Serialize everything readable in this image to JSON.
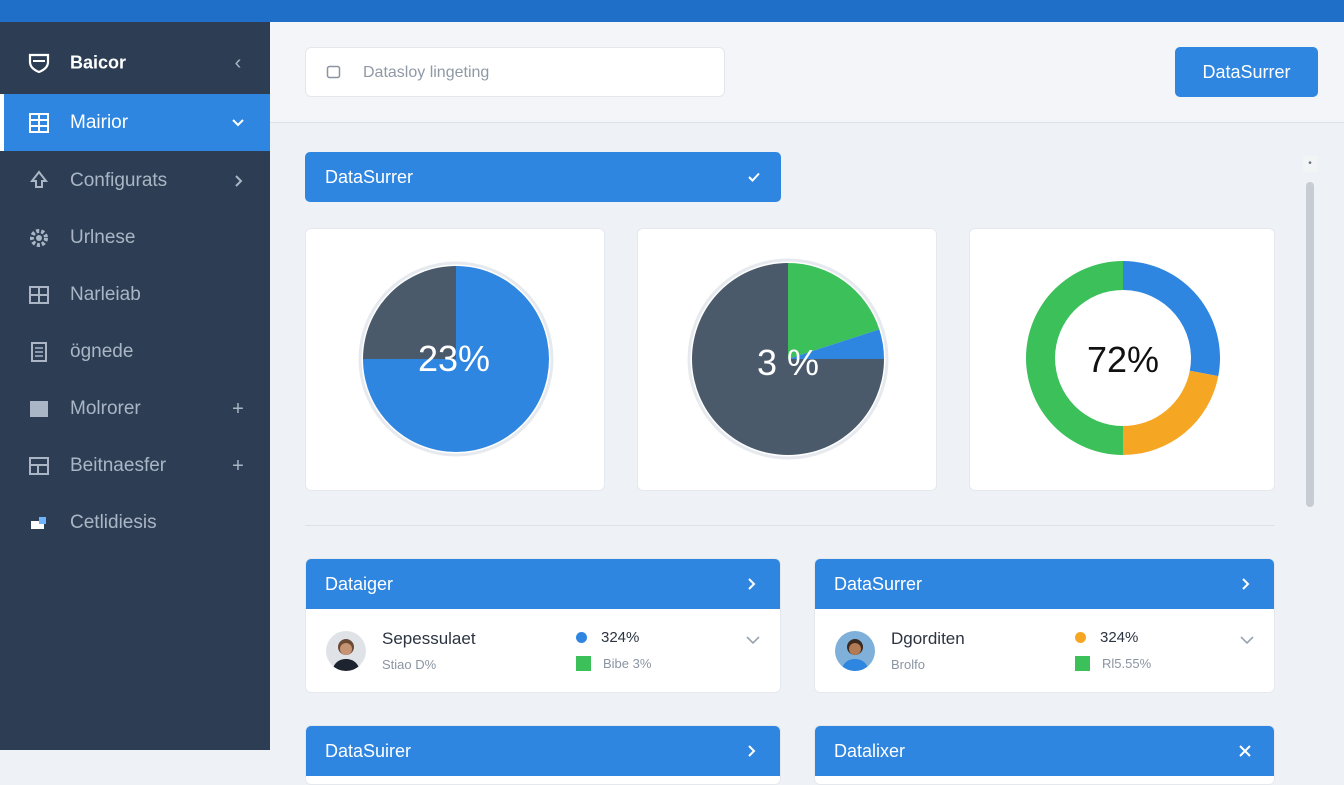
{
  "colors": {
    "accent": "#2f86e0",
    "sidebar": "#2d3e54",
    "donut_dark": "#4a5a6b",
    "green": "#3cc05a",
    "orange": "#f5a623",
    "blue": "#2f86e0"
  },
  "sidebar": {
    "items": [
      {
        "label": "Baicor",
        "icon": "shield-icon",
        "trail": "chevron-left-icon"
      },
      {
        "label": "Mairior",
        "icon": "grid-icon",
        "trail": "chevron-down-icon"
      },
      {
        "label": "Configurats",
        "icon": "bell-icon",
        "trail": "chevron-right-icon"
      },
      {
        "label": "Urlnese",
        "icon": "gear-icon"
      },
      {
        "label": "Narleiab",
        "icon": "table-icon"
      },
      {
        "label": "ögnede",
        "icon": "document-icon"
      },
      {
        "label": "Molrorer",
        "icon": "monitor-icon",
        "trail": "plus-icon"
      },
      {
        "label": "Beitnaesfer",
        "icon": "layout-icon",
        "trail": "plus-icon"
      },
      {
        "label": "Cetlidiesis",
        "icon": "puzzle-icon"
      }
    ]
  },
  "header": {
    "search_placeholder": "Datasloy lingeting",
    "primary_button": "DataSurrer"
  },
  "filter": {
    "label": "DataSurrer"
  },
  "donuts": [
    {
      "value_label": "23%",
      "segments": [
        {
          "fraction": 0.75,
          "color": "#2f86e0"
        },
        {
          "fraction": 0.25,
          "color": "#4a5a6b"
        }
      ]
    },
    {
      "value_label": "3 %",
      "segments": [
        {
          "fraction": 0.2,
          "color": "#3cc05a"
        },
        {
          "fraction": 0.05,
          "color": "#2f86e0"
        },
        {
          "fraction": 0.75,
          "color": "#4a5a6b"
        }
      ]
    },
    {
      "value_label": "72%",
      "segments": [
        {
          "fraction": 0.28,
          "color": "#2f86e0"
        },
        {
          "fraction": 0.22,
          "color": "#f5a623"
        },
        {
          "fraction": 0.5,
          "color": "#3cc05a"
        }
      ]
    }
  ],
  "panels": [
    {
      "title": "Dataiger",
      "person": "Sepessulaet",
      "sub": "Stiao D%",
      "stat1": "324%",
      "stat1_color": "#2f86e0",
      "stat2": "Bibe 3%",
      "stat2_color": "#3cc05a"
    },
    {
      "title": "DataSurrer",
      "person": "Dgorditen",
      "sub": "Brolfo",
      "stat1": "324%",
      "stat1_color": "#f5a623",
      "stat2": "Rl5.55%",
      "stat2_color": "#3cc05a"
    },
    {
      "title": "DataSuirer"
    },
    {
      "title": "Datalixer"
    }
  ]
}
